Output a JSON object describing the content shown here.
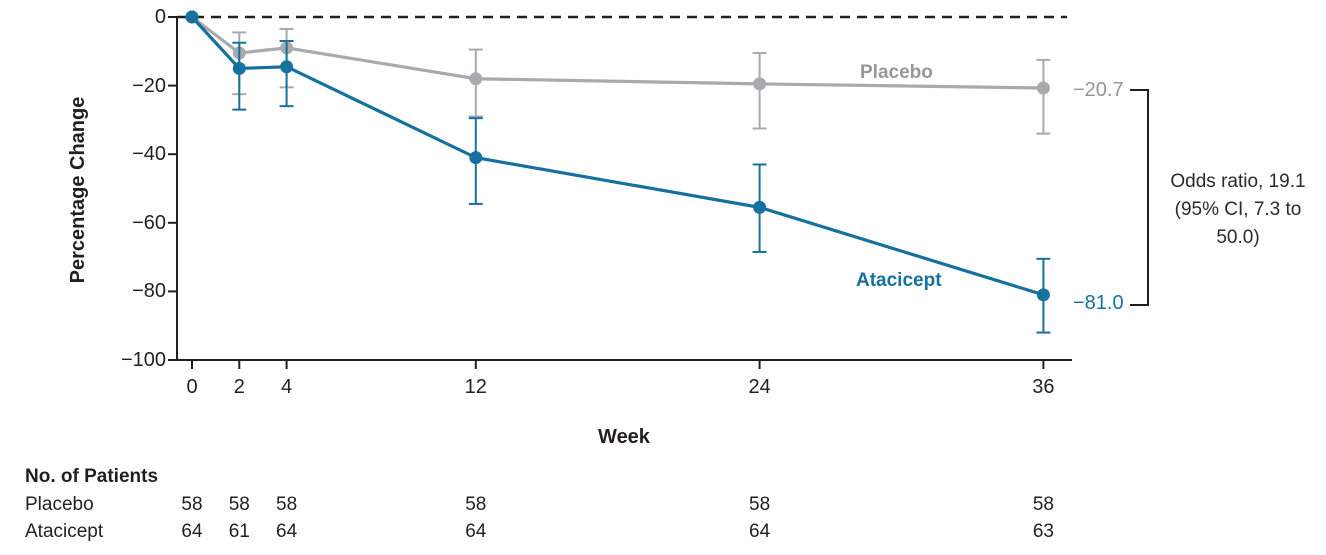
{
  "chart_data": {
    "type": "line",
    "title": "",
    "xlabel": "Week",
    "ylabel": "Percentage Change",
    "x_ticks": [
      0,
      2,
      4,
      12,
      24,
      36
    ],
    "x_tick_labels": [
      "0",
      "2",
      "4",
      "12",
      "24",
      "36"
    ],
    "y_ticks": [
      0,
      -20,
      -40,
      -60,
      -80,
      -100
    ],
    "y_tick_labels": [
      "0",
      "−20",
      "−40",
      "−60",
      "−80",
      "−100"
    ],
    "ylim": [
      -100,
      0
    ],
    "xlim": [
      0,
      36
    ],
    "grid": false,
    "zero_reference_line": true,
    "legend_position": "inline-labels",
    "axis_color": "#231f20",
    "series": [
      {
        "name": "Placebo",
        "color": "#a8aaad",
        "x": [
          0,
          2,
          4,
          12,
          24,
          36
        ],
        "y": [
          0,
          -10.5,
          -9,
          -18,
          -19.5,
          -20.7
        ],
        "ci_high": [
          null,
          -4.5,
          -3.5,
          -9.5,
          -10.5,
          -12.5
        ],
        "ci_low": [
          null,
          -22.5,
          -20.5,
          -29,
          -32.5,
          -34
        ],
        "end_label": "−20.7"
      },
      {
        "name": "Atacicept",
        "color": "#16719e",
        "x": [
          0,
          2,
          4,
          12,
          24,
          36
        ],
        "y": [
          0,
          -15,
          -14.5,
          -41,
          -55.5,
          -81
        ],
        "ci_high": [
          null,
          -7.5,
          -7,
          -29.5,
          -43,
          -70.5
        ],
        "ci_low": [
          null,
          -27,
          -26,
          -54.5,
          -68.5,
          -92
        ],
        "end_label": "−81.0"
      }
    ],
    "annotation": {
      "lines": [
        "Odds ratio, 19.1",
        "(95% CI, 7.3 to",
        "50.0)"
      ]
    }
  },
  "patients_table": {
    "title": "No. of Patients",
    "weeks": [
      0,
      2,
      4,
      12,
      24,
      36
    ],
    "rows": [
      {
        "label": "Placebo",
        "counts": [
          "58",
          "58",
          "58",
          "58",
          "58",
          "58"
        ]
      },
      {
        "label": "Atacicept",
        "counts": [
          "64",
          "61",
          "64",
          "64",
          "64",
          "63"
        ]
      }
    ]
  }
}
